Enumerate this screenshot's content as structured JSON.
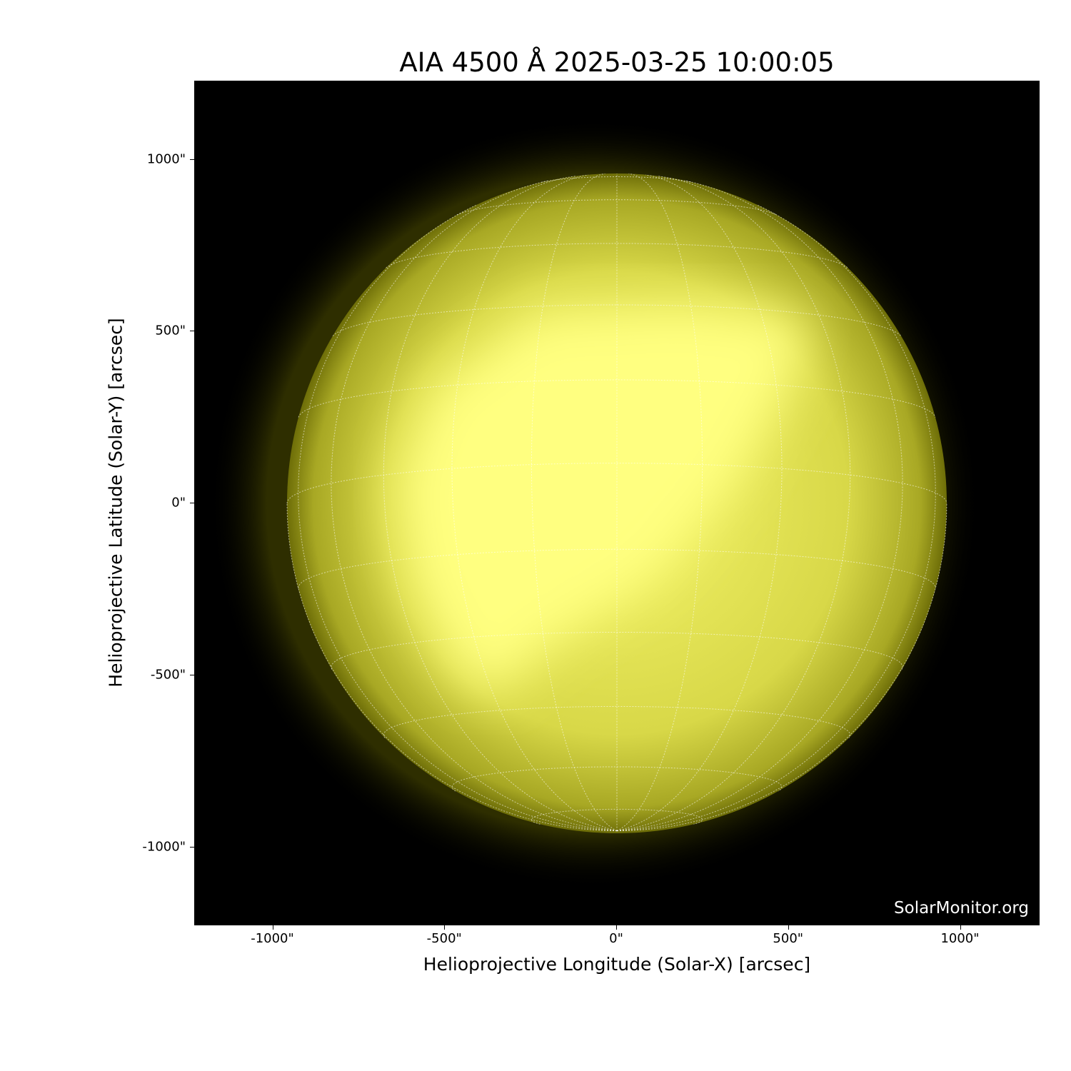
{
  "chart_data": {
    "type": "image",
    "title": "AIA 4500 Å 2025-03-25 10:00:05",
    "xlabel": "Helioprojective Longitude (Solar-X) [arcsec]",
    "ylabel": "Helioprojective Latitude (Solar-Y) [arcsec]",
    "xlim": [
      -1230,
      1230
    ],
    "ylim": [
      -1230,
      1230
    ],
    "xticks": [
      -1000,
      -500,
      0,
      500,
      1000
    ],
    "yticks": [
      -1000,
      -500,
      0,
      500,
      1000
    ],
    "xtick_labels": [
      "-1000\"",
      "-500\"",
      "0\"",
      "500\"",
      "1000\""
    ],
    "ytick_labels": [
      "-1000\"",
      "-500\"",
      "0\"",
      "500\"",
      "1000\""
    ],
    "solar_radius_arcsec": 961,
    "grid": "heliographic, 15° spacing, dotted white",
    "colormap": "yellow (sdoaia4500)",
    "background_color": "#000000",
    "disk_color": "#ffff80",
    "watermark": "SolarMonitor.org"
  }
}
